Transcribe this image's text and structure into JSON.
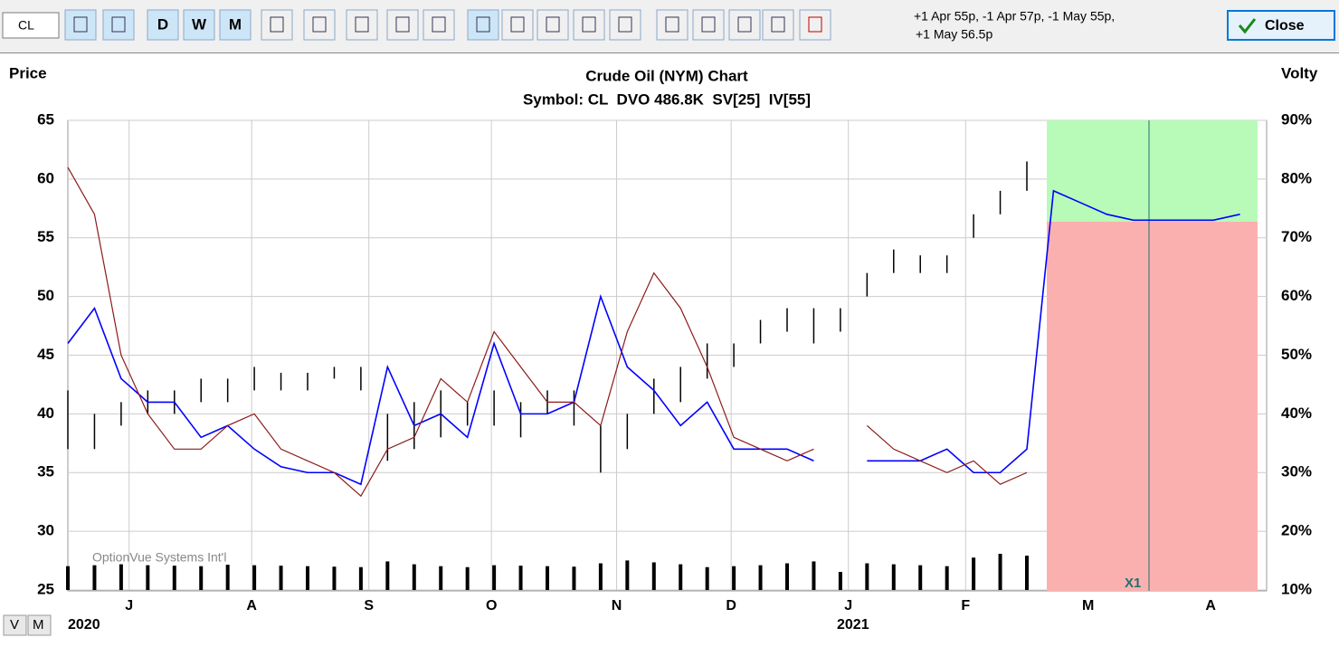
{
  "toolbar": {
    "symbol": "CL",
    "buttons": [
      "D",
      "W",
      "M"
    ],
    "positions": [
      "+1 Apr 55p, -1 Apr 57p, -1 May 55p,",
      "+1 May 56.5p"
    ],
    "close": "Close"
  },
  "chart_data": {
    "type": "stock",
    "title": "Crude Oil (NYM) Chart",
    "subtitle": "Symbol: CL  DVO 486.8K  SV[25]  IV[55]",
    "ylabel": "Price",
    "y2label": "Volty",
    "watermark": "OptionVue Systems Int'l",
    "marker": "X1",
    "years": [
      "2020",
      "2021"
    ],
    "axis_buttons": [
      "V",
      "M"
    ],
    "x": [
      0,
      1,
      2,
      3,
      4,
      5,
      6,
      7,
      8,
      9,
      10,
      11,
      12,
      13,
      14,
      15,
      16,
      17,
      18,
      19,
      20,
      21,
      22,
      23,
      24,
      25,
      26,
      27,
      28,
      29,
      30,
      31,
      32,
      33,
      34,
      35,
      36,
      37,
      38,
      39,
      40,
      41,
      42,
      43,
      44
    ],
    "xlim": [
      0,
      45
    ],
    "xticks": [
      {
        "value": 2.3,
        "label": "J"
      },
      {
        "value": 6.9,
        "label": "A"
      },
      {
        "value": 11.3,
        "label": "S"
      },
      {
        "value": 15.9,
        "label": "O"
      },
      {
        "value": 20.6,
        "label": "N"
      },
      {
        "value": 24.9,
        "label": "D"
      },
      {
        "value": 29.3,
        "label": "J"
      },
      {
        "value": 33.7,
        "label": "F"
      },
      {
        "value": 38.3,
        "label": "M"
      },
      {
        "value": 42.9,
        "label": "A"
      }
    ],
    "ylim": [
      25,
      65
    ],
    "yticks": [
      25,
      30,
      35,
      40,
      45,
      50,
      55,
      60,
      65
    ],
    "y2lim": [
      10,
      90
    ],
    "y2ticks": [
      {
        "value": 10,
        "label": "10%"
      },
      {
        "value": 20,
        "label": "20%"
      },
      {
        "value": 30,
        "label": "30%"
      },
      {
        "value": 40,
        "label": "40%"
      },
      {
        "value": 50,
        "label": "50%"
      },
      {
        "value": 60,
        "label": "60%"
      },
      {
        "value": 70,
        "label": "70%"
      },
      {
        "value": 80,
        "label": "80%"
      },
      {
        "value": 90,
        "label": "90%"
      }
    ],
    "grid": true,
    "price_bars": {
      "color": "#000000",
      "low": [
        37,
        37,
        39,
        40,
        40,
        41,
        41,
        42,
        42,
        42,
        43,
        42,
        36,
        37,
        38,
        39,
        39,
        38,
        40,
        39,
        35,
        37,
        40,
        41,
        43,
        44,
        46,
        47,
        46,
        47,
        50,
        52,
        52,
        52,
        55,
        57,
        59,
        null,
        null,
        null,
        null,
        null,
        null,
        null,
        null
      ],
      "high": [
        42,
        40,
        41,
        42,
        42,
        43,
        43,
        44,
        43.5,
        43.5,
        44,
        44,
        40,
        41,
        42,
        41,
        42,
        41,
        42,
        42,
        39,
        40,
        43,
        44,
        46,
        46,
        48,
        49,
        49,
        49,
        52,
        54,
        53.5,
        53.5,
        57,
        59,
        61.5,
        null,
        null,
        null,
        null,
        null,
        null,
        null,
        null
      ]
    },
    "volume": {
      "color": "#000000",
      "values": [
        500,
        520,
        540,
        520,
        510,
        500,
        530,
        520,
        510,
        500,
        490,
        480,
        600,
        540,
        500,
        480,
        520,
        510,
        500,
        490,
        560,
        620,
        580,
        540,
        480,
        500,
        520,
        560,
        600,
        380,
        560,
        540,
        520,
        500,
        680,
        760,
        720,
        null,
        null,
        null,
        null,
        null,
        null,
        null,
        null
      ]
    },
    "series": [
      {
        "color": "#0000ff",
        "axis": "y2",
        "values": [
          52,
          58,
          46,
          42,
          42,
          36,
          38,
          34,
          31,
          30,
          30,
          28,
          48,
          38,
          40,
          36,
          52,
          40,
          40,
          42,
          60,
          48,
          44,
          38,
          42,
          34,
          34,
          34,
          32,
          null,
          32,
          32,
          32,
          34,
          30,
          30,
          34,
          78,
          76,
          74,
          73,
          73,
          73,
          73,
          74
        ]
      },
      {
        "color": "#8b1a1a",
        "axis": "y2",
        "values": [
          82,
          74,
          50,
          40,
          34,
          34,
          38,
          40,
          34,
          32,
          30,
          26,
          34,
          36,
          46,
          42,
          54,
          48,
          42,
          42,
          38,
          54,
          64,
          58,
          48,
          36,
          34,
          32,
          34,
          null,
          38,
          34,
          32,
          30,
          32,
          28,
          30,
          null,
          null,
          null,
          null,
          null,
          null,
          null,
          null
        ]
      }
    ]
  }
}
